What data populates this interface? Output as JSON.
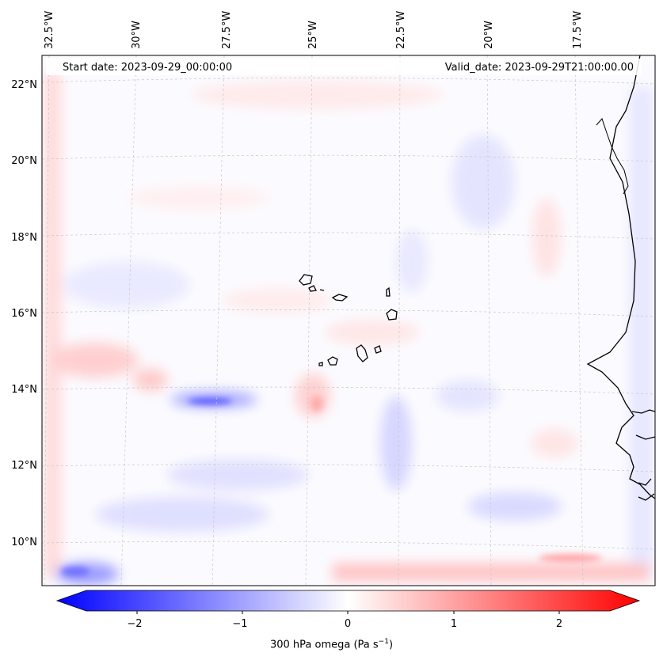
{
  "header": {
    "start_label": "Start date: 2023-09-29_00:00:00",
    "valid_label": "Valid_date: 2023-09-29T21:00:00.00"
  },
  "axes": {
    "lon_labels": [
      "32.5°W",
      "30°W",
      "27.5°W",
      "25°W",
      "22.5°W",
      "20°W",
      "17.5°W"
    ],
    "lat_labels": [
      "22°N",
      "20°N",
      "18°N",
      "16°N",
      "14°N",
      "12°N",
      "10°N"
    ]
  },
  "colorbar": {
    "ticks": [
      "−2",
      "−1",
      "0",
      "1",
      "2"
    ],
    "label_main": "300 hPa omega (Pa s",
    "label_exp": "−1",
    "label_end": ")",
    "colormap": "bwr",
    "vmin": -2.7,
    "vmax": 2.7,
    "extend": "both"
  },
  "colors": {
    "negative": "#0000ff",
    "zero": "#ffffff",
    "positive": "#ff0000"
  }
}
